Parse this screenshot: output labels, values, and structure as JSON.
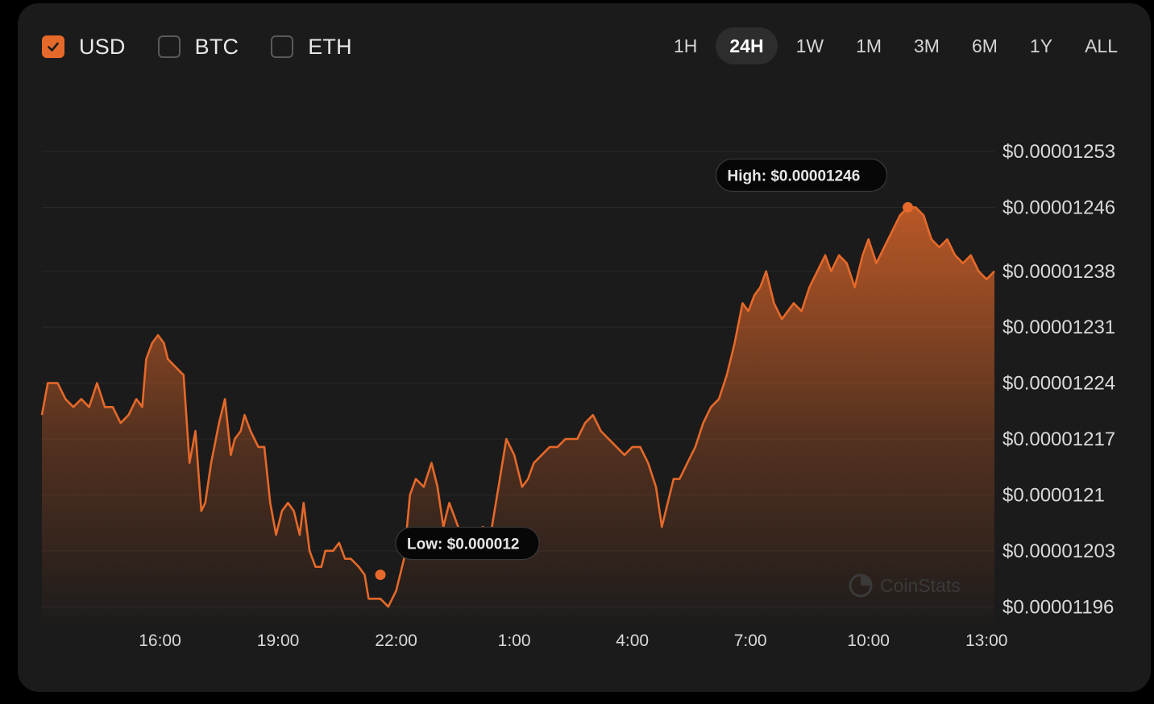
{
  "currencies": [
    {
      "label": "USD",
      "checked": true
    },
    {
      "label": "BTC",
      "checked": false
    },
    {
      "label": "ETH",
      "checked": false
    }
  ],
  "ranges": [
    {
      "label": "1H",
      "active": false
    },
    {
      "label": "24H",
      "active": true
    },
    {
      "label": "1W",
      "active": false
    },
    {
      "label": "1M",
      "active": false
    },
    {
      "label": "3M",
      "active": false
    },
    {
      "label": "6M",
      "active": false
    },
    {
      "label": "1Y",
      "active": false
    },
    {
      "label": "ALL",
      "active": false
    }
  ],
  "colors": {
    "accent": "#e5692a",
    "background": "#1b1b1b",
    "grid": "#2a2a2a"
  },
  "tooltips": {
    "high": "High: $0.00001246",
    "low": "Low: $0.000012"
  },
  "watermark": "CoinStats",
  "chart_data": {
    "type": "area",
    "title": "",
    "xlabel": "",
    "ylabel": "",
    "grid": true,
    "currency": "USD",
    "x_start_hour": 13.0,
    "x_end_hour": 37.2,
    "x_ticks": [
      {
        "label": "16:00",
        "hour": 16
      },
      {
        "label": "19:00",
        "hour": 19
      },
      {
        "label": "22:00",
        "hour": 22
      },
      {
        "label": "1:00",
        "hour": 25
      },
      {
        "label": "4:00",
        "hour": 28
      },
      {
        "label": "7:00",
        "hour": 31
      },
      {
        "label": "10:00",
        "hour": 34
      },
      {
        "label": "13:00",
        "hour": 37
      }
    ],
    "y_ticks": [
      {
        "label": "$0.00001253",
        "value": 1.253e-05
      },
      {
        "label": "$0.00001246",
        "value": 1.246e-05
      },
      {
        "label": "$0.00001238",
        "value": 1.238e-05
      },
      {
        "label": "$0.00001231",
        "value": 1.231e-05
      },
      {
        "label": "$0.00001224",
        "value": 1.224e-05
      },
      {
        "label": "$0.00001217",
        "value": 1.217e-05
      },
      {
        "label": "$0.0000121",
        "value": 1.21e-05
      },
      {
        "label": "$0.00001203",
        "value": 1.203e-05
      },
      {
        "label": "$0.00001196",
        "value": 1.196e-05
      }
    ],
    "ylim": [
      1.193e-05,
      1.253e-05
    ],
    "high": {
      "hour": 35.0,
      "value": 1.246e-05
    },
    "low": {
      "hour": 21.6,
      "value": 1.2e-05
    },
    "points": [
      [
        13.0,
        1.22e-05
      ],
      [
        13.15,
        1.224e-05
      ],
      [
        13.4,
        1.224e-05
      ],
      [
        13.6,
        1.222e-05
      ],
      [
        13.8,
        1.221e-05
      ],
      [
        14.0,
        1.222e-05
      ],
      [
        14.2,
        1.221e-05
      ],
      [
        14.4,
        1.224e-05
      ],
      [
        14.6,
        1.221e-05
      ],
      [
        14.8,
        1.221e-05
      ],
      [
        15.0,
        1.219e-05
      ],
      [
        15.2,
        1.22e-05
      ],
      [
        15.4,
        1.222e-05
      ],
      [
        15.55,
        1.221e-05
      ],
      [
        15.65,
        1.227e-05
      ],
      [
        15.8,
        1.229e-05
      ],
      [
        15.95,
        1.23e-05
      ],
      [
        16.1,
        1.229e-05
      ],
      [
        16.2,
        1.227e-05
      ],
      [
        16.4,
        1.226e-05
      ],
      [
        16.6,
        1.225e-05
      ],
      [
        16.75,
        1.214e-05
      ],
      [
        16.9,
        1.218e-05
      ],
      [
        17.05,
        1.208e-05
      ],
      [
        17.15,
        1.209e-05
      ],
      [
        17.3,
        1.214e-05
      ],
      [
        17.5,
        1.219e-05
      ],
      [
        17.65,
        1.222e-05
      ],
      [
        17.8,
        1.215e-05
      ],
      [
        17.9,
        1.217e-05
      ],
      [
        18.05,
        1.218e-05
      ],
      [
        18.15,
        1.22e-05
      ],
      [
        18.3,
        1.218e-05
      ],
      [
        18.5,
        1.216e-05
      ],
      [
        18.65,
        1.216e-05
      ],
      [
        18.8,
        1.209e-05
      ],
      [
        18.95,
        1.205e-05
      ],
      [
        19.1,
        1.208e-05
      ],
      [
        19.25,
        1.209e-05
      ],
      [
        19.4,
        1.208e-05
      ],
      [
        19.55,
        1.205e-05
      ],
      [
        19.65,
        1.209e-05
      ],
      [
        19.8,
        1.203e-05
      ],
      [
        19.95,
        1.201e-05
      ],
      [
        20.1,
        1.201e-05
      ],
      [
        20.2,
        1.203e-05
      ],
      [
        20.4,
        1.203e-05
      ],
      [
        20.55,
        1.204e-05
      ],
      [
        20.7,
        1.202e-05
      ],
      [
        20.85,
        1.202e-05
      ],
      [
        21.05,
        1.201e-05
      ],
      [
        21.2,
        1.2e-05
      ],
      [
        21.3,
        1.197e-05
      ],
      [
        21.45,
        1.197e-05
      ],
      [
        21.6,
        1.197e-05
      ],
      [
        21.8,
        1.196e-05
      ],
      [
        22.0,
        1.198e-05
      ],
      [
        22.2,
        1.202e-05
      ],
      [
        22.35,
        1.21e-05
      ],
      [
        22.5,
        1.212e-05
      ],
      [
        22.7,
        1.211e-05
      ],
      [
        22.9,
        1.214e-05
      ],
      [
        23.05,
        1.211e-05
      ],
      [
        23.2,
        1.206e-05
      ],
      [
        23.35,
        1.209e-05
      ],
      [
        23.5,
        1.207e-05
      ],
      [
        23.65,
        1.205e-05
      ],
      [
        23.85,
        1.205e-05
      ],
      [
        24.0,
        1.204e-05
      ],
      [
        24.2,
        1.206e-05
      ],
      [
        24.4,
        1.205e-05
      ],
      [
        24.6,
        1.211e-05
      ],
      [
        24.8,
        1.217e-05
      ],
      [
        25.0,
        1.215e-05
      ],
      [
        25.2,
        1.211e-05
      ],
      [
        25.35,
        1.212e-05
      ],
      [
        25.5,
        1.214e-05
      ],
      [
        25.7,
        1.215e-05
      ],
      [
        25.9,
        1.216e-05
      ],
      [
        26.1,
        1.216e-05
      ],
      [
        26.3,
        1.217e-05
      ],
      [
        26.45,
        1.217e-05
      ],
      [
        26.6,
        1.217e-05
      ],
      [
        26.8,
        1.219e-05
      ],
      [
        27.0,
        1.22e-05
      ],
      [
        27.2,
        1.218e-05
      ],
      [
        27.4,
        1.217e-05
      ],
      [
        27.6,
        1.216e-05
      ],
      [
        27.8,
        1.215e-05
      ],
      [
        28.0,
        1.216e-05
      ],
      [
        28.2,
        1.216e-05
      ],
      [
        28.4,
        1.214e-05
      ],
      [
        28.6,
        1.211e-05
      ],
      [
        28.75,
        1.206e-05
      ],
      [
        28.9,
        1.209e-05
      ],
      [
        29.05,
        1.212e-05
      ],
      [
        29.2,
        1.212e-05
      ],
      [
        29.4,
        1.214e-05
      ],
      [
        29.6,
        1.216e-05
      ],
      [
        29.8,
        1.219e-05
      ],
      [
        30.0,
        1.221e-05
      ],
      [
        30.2,
        1.222e-05
      ],
      [
        30.4,
        1.225e-05
      ],
      [
        30.6,
        1.229e-05
      ],
      [
        30.8,
        1.234e-05
      ],
      [
        30.95,
        1.233e-05
      ],
      [
        31.1,
        1.235e-05
      ],
      [
        31.25,
        1.236e-05
      ],
      [
        31.4,
        1.238e-05
      ],
      [
        31.6,
        1.234e-05
      ],
      [
        31.8,
        1.232e-05
      ],
      [
        31.95,
        1.233e-05
      ],
      [
        32.1,
        1.234e-05
      ],
      [
        32.3,
        1.233e-05
      ],
      [
        32.5,
        1.236e-05
      ],
      [
        32.7,
        1.238e-05
      ],
      [
        32.9,
        1.24e-05
      ],
      [
        33.05,
        1.238e-05
      ],
      [
        33.25,
        1.24e-05
      ],
      [
        33.45,
        1.239e-05
      ],
      [
        33.65,
        1.236e-05
      ],
      [
        33.85,
        1.24e-05
      ],
      [
        34.0,
        1.242e-05
      ],
      [
        34.2,
        1.239e-05
      ],
      [
        34.4,
        1.241e-05
      ],
      [
        34.6,
        1.243e-05
      ],
      [
        34.8,
        1.245e-05
      ],
      [
        35.0,
        1.246e-05
      ],
      [
        35.2,
        1.246e-05
      ],
      [
        35.4,
        1.245e-05
      ],
      [
        35.6,
        1.242e-05
      ],
      [
        35.8,
        1.241e-05
      ],
      [
        36.0,
        1.242e-05
      ],
      [
        36.2,
        1.24e-05
      ],
      [
        36.4,
        1.239e-05
      ],
      [
        36.6,
        1.24e-05
      ],
      [
        36.8,
        1.238e-05
      ],
      [
        37.0,
        1.237e-05
      ],
      [
        37.2,
        1.238e-05
      ]
    ]
  }
}
